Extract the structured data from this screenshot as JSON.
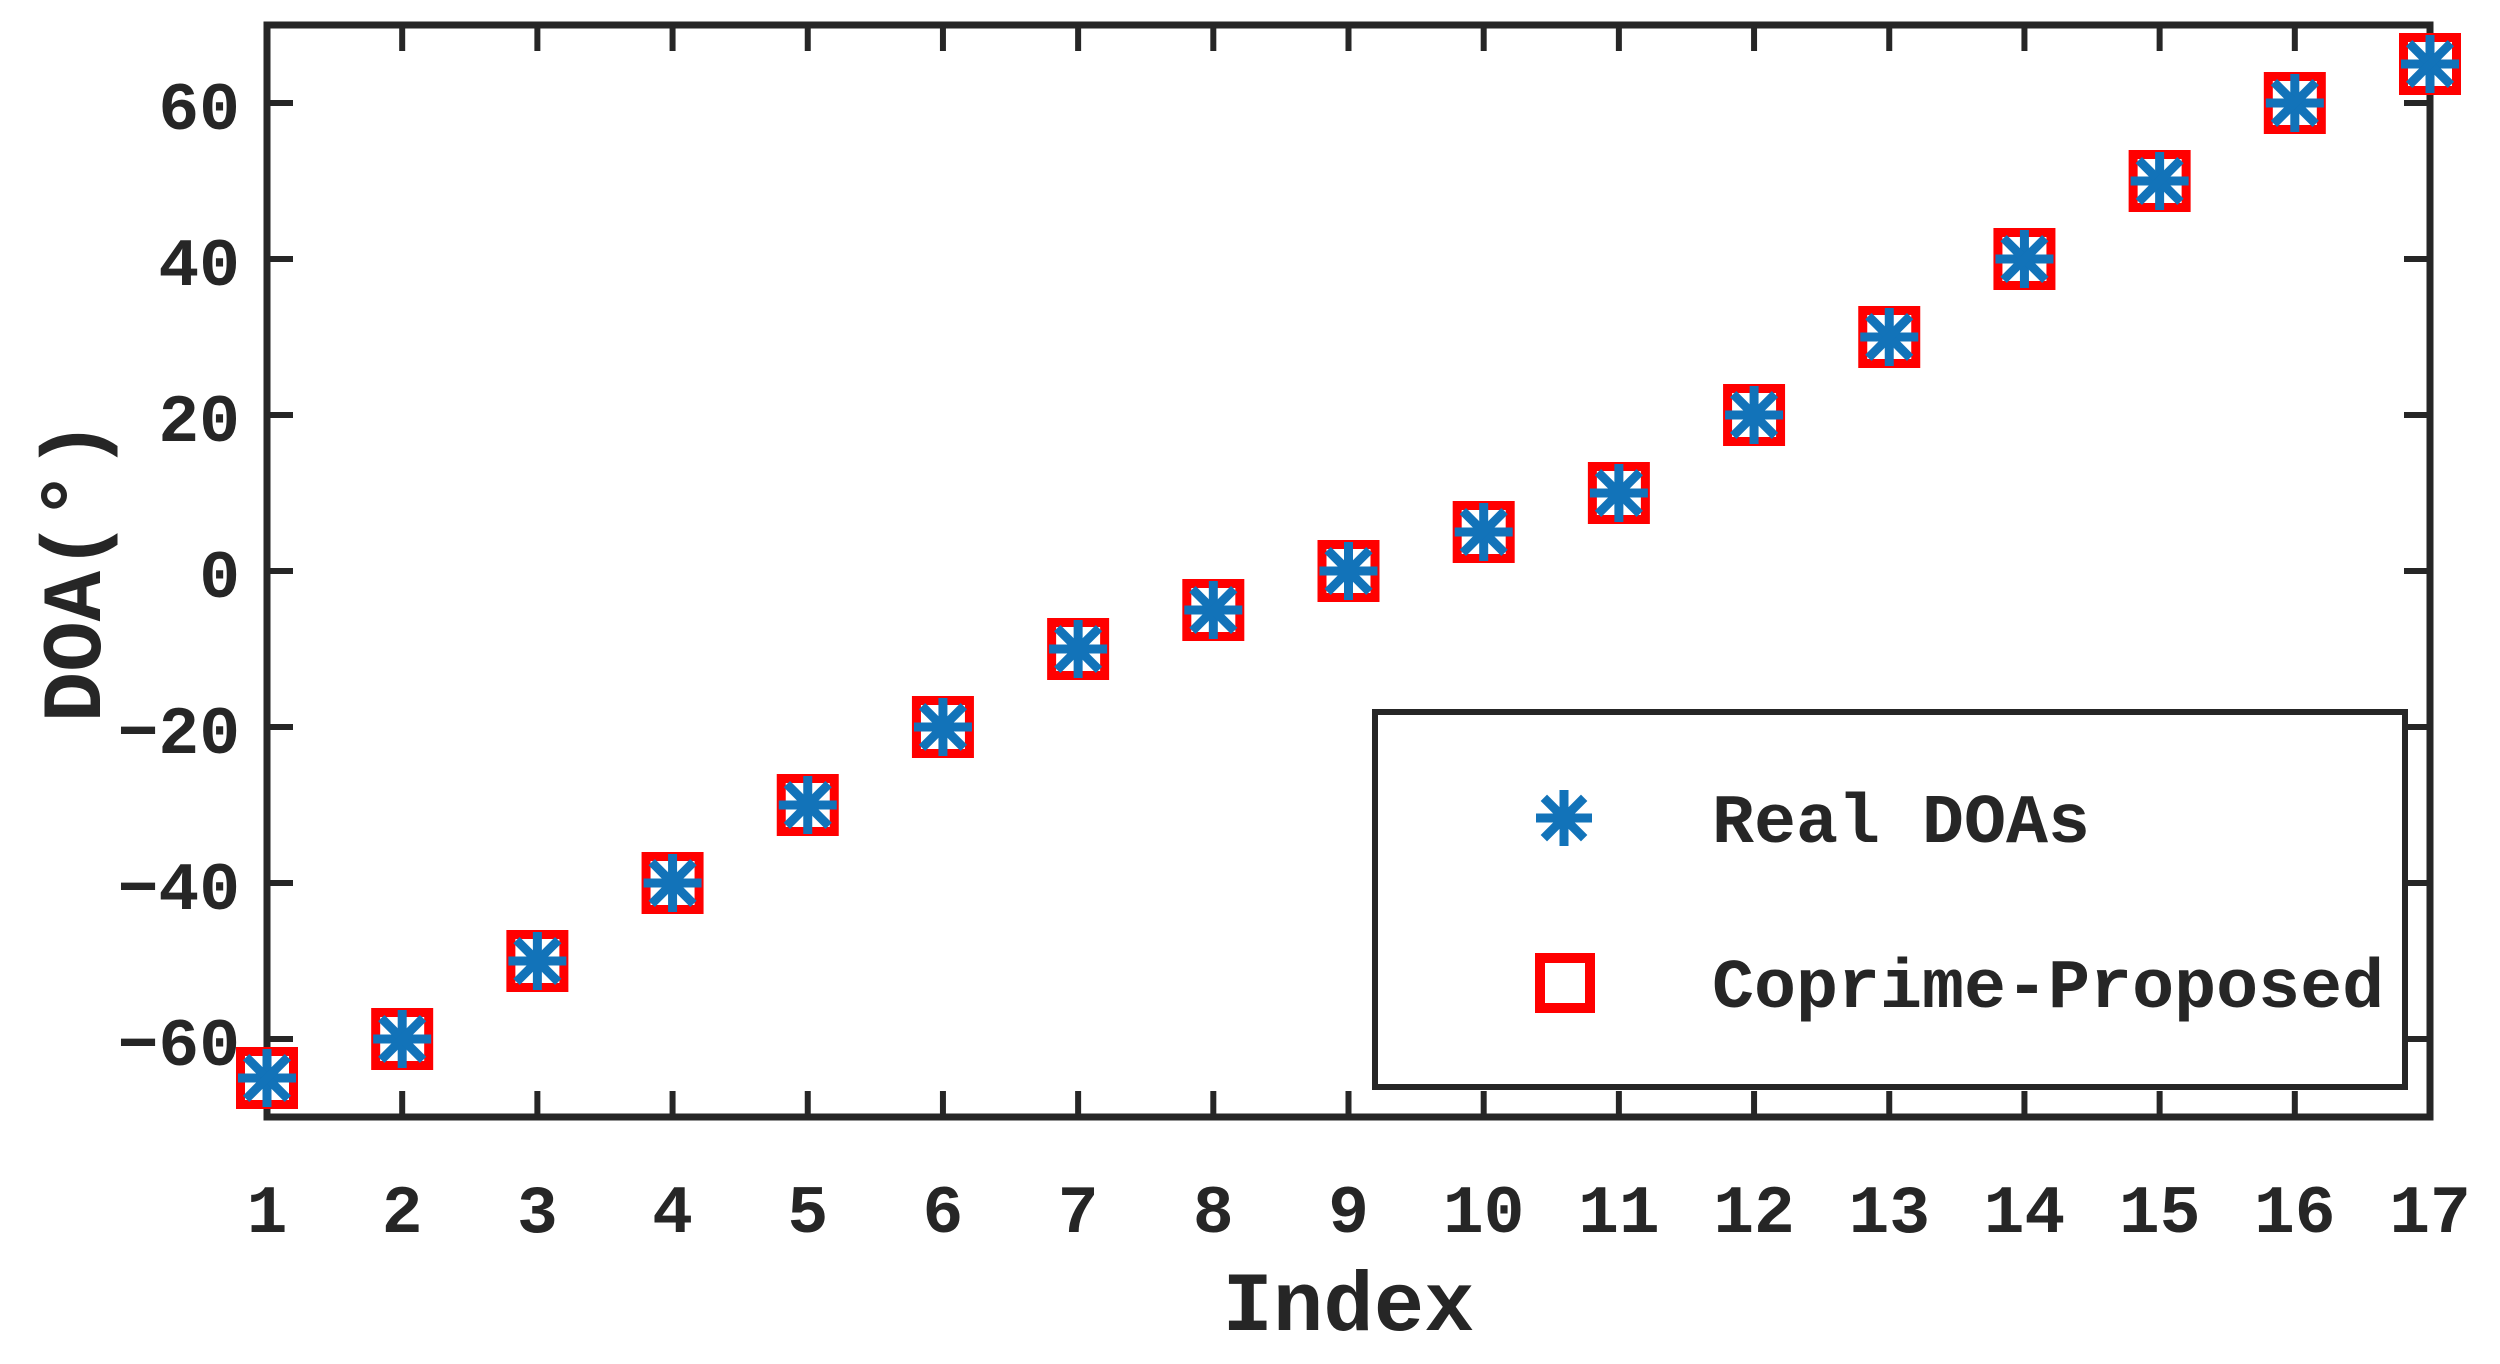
{
  "figure": {
    "background": "#ffffff",
    "axis_color": "#262626"
  },
  "chart_data": {
    "type": "scatter",
    "title": "",
    "xlabel": "Index",
    "ylabel": "DOA(°)",
    "xlim": [
      1,
      17
    ],
    "ylim": [
      -70,
      70
    ],
    "grid": false,
    "box": true,
    "tick_direction": "in",
    "x_ticks": [
      1,
      2,
      3,
      4,
      5,
      6,
      7,
      8,
      9,
      10,
      11,
      12,
      13,
      14,
      15,
      16,
      17
    ],
    "y_ticks": [
      -60,
      -40,
      -20,
      0,
      20,
      40,
      60
    ],
    "y_tick_labels": [
      "−60",
      "−40",
      "−20",
      "0",
      "20",
      "40",
      "60"
    ],
    "x": [
      1,
      2,
      3,
      4,
      5,
      6,
      7,
      8,
      9,
      10,
      11,
      12,
      13,
      14,
      15,
      16,
      17
    ],
    "series": [
      {
        "name": "Real DOAs",
        "marker": "asterisk",
        "color": "#1273B9",
        "values": [
          -65,
          -60,
          -50,
          -40,
          -30,
          -20,
          -10,
          -5,
          0,
          5,
          10,
          20,
          30,
          40,
          50,
          60,
          65
        ]
      },
      {
        "name": "Coprime-Proposed",
        "marker": "open-square",
        "color": "#FF0000",
        "values": [
          -65,
          -60,
          -50,
          -40,
          -30,
          -20,
          -10,
          -5,
          0,
          5,
          10,
          20,
          30,
          40,
          50,
          60,
          65
        ]
      }
    ],
    "legend": {
      "position": "lower-right",
      "bordered": true
    }
  }
}
